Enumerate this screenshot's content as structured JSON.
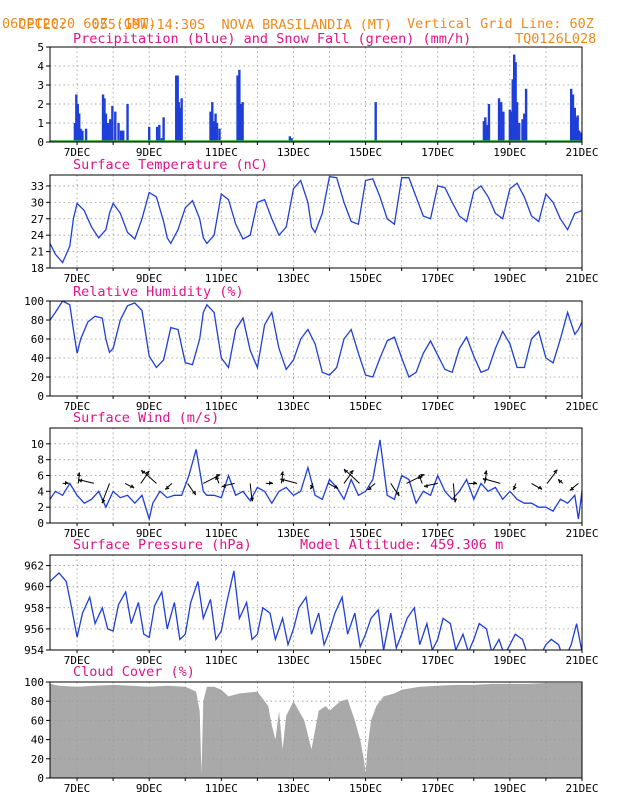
{
  "header": {
    "source": "CPTEC:",
    "coords": "055:19W-14:30S",
    "station": "NOVA BRASILANDIA (MT)",
    "run": "06DEC2020 60Z (GMT)",
    "grid_note": "Vertical Grid Line: 60Z",
    "model_code": "TQ0126L028"
  },
  "colors": {
    "header": "#f08a1a",
    "title": "#e0148c",
    "line": "#1f3fd8",
    "precip": "#1f3fd8",
    "snow": "#22aa22",
    "cloud": "#a9a9a9"
  },
  "date_labels": [
    "7DEC",
    "9DEC",
    "11DEC",
    "13DEC",
    "15DEC",
    "17DEC",
    "19DEC",
    "21DEC"
  ],
  "chart_data": [
    {
      "type": "bar",
      "title": "Precipitation (blue) and Snow Fall (green) (mm/h)",
      "ylim": [
        0,
        5
      ],
      "yticks": [
        "0",
        "1",
        "2",
        "3",
        "4",
        "5"
      ],
      "series": [
        {
          "name": "Precipitation",
          "color": "#1f3fd8",
          "x": [
            6.94,
            6.98,
            7.02,
            7.06,
            7.1,
            7.15,
            7.25,
            7.72,
            7.76,
            7.8,
            7.86,
            7.92,
            7.98,
            8.06,
            8.15,
            8.22,
            8.28,
            8.4,
            9.0,
            9.22,
            9.28,
            9.35,
            9.4,
            9.75,
            9.79,
            9.82,
            9.86,
            9.9,
            10.7,
            10.75,
            10.8,
            10.84,
            10.88,
            10.95,
            11.45,
            11.5,
            11.55,
            11.59,
            12.9,
            12.95,
            15.28,
            18.28,
            18.32,
            18.38,
            18.42,
            18.7,
            18.76,
            18.82,
            19.0,
            19.05,
            19.08,
            19.12,
            19.16,
            19.2,
            19.26,
            19.35,
            19.4,
            19.45,
            20.7,
            20.75,
            20.8,
            20.84,
            20.88,
            20.92,
            20.98
          ],
          "values": [
            1.0,
            2.5,
            2.0,
            1.5,
            0.7,
            0.6,
            0.7,
            2.5,
            2.3,
            1.5,
            1.0,
            1.2,
            1.9,
            1.6,
            1.0,
            0.6,
            0.6,
            2.0,
            0.8,
            0.8,
            0.9,
            0.2,
            1.3,
            3.5,
            3.5,
            2.1,
            1.8,
            2.3,
            1.6,
            2.1,
            1.1,
            1.5,
            1.0,
            0.7,
            3.5,
            3.8,
            2.0,
            2.1,
            0.3,
            0.2,
            2.1,
            1.1,
            1.3,
            0.9,
            2.0,
            2.3,
            2.1,
            1.6,
            1.7,
            1.6,
            3.3,
            4.6,
            4.2,
            2.1,
            1.0,
            1.2,
            1.5,
            2.8,
            2.8,
            2.5,
            1.8,
            1.3,
            1.4,
            0.6,
            0.5
          ]
        },
        {
          "name": "Snow Fall",
          "color": "#22aa22",
          "x": [],
          "values": []
        }
      ]
    },
    {
      "type": "line",
      "title": "Surface Temperature (nC)",
      "ylim": [
        18,
        35
      ],
      "yticks": [
        "18",
        "21",
        "24",
        "27",
        "30",
        "33"
      ],
      "x": [
        6.25,
        6.4,
        6.6,
        6.8,
        6.9,
        7.0,
        7.2,
        7.4,
        7.6,
        7.8,
        7.9,
        8.0,
        8.2,
        8.4,
        8.6,
        8.8,
        9.0,
        9.2,
        9.4,
        9.5,
        9.6,
        9.8,
        10.0,
        10.2,
        10.4,
        10.5,
        10.6,
        10.8,
        11.0,
        11.2,
        11.4,
        11.6,
        11.8,
        12.0,
        12.2,
        12.4,
        12.6,
        12.8,
        13.0,
        13.2,
        13.4,
        13.5,
        13.6,
        13.8,
        14.0,
        14.2,
        14.4,
        14.6,
        14.8,
        15.0,
        15.2,
        15.4,
        15.6,
        15.8,
        16.0,
        16.2,
        16.4,
        16.6,
        16.8,
        17.0,
        17.2,
        17.4,
        17.6,
        17.8,
        18.0,
        18.2,
        18.4,
        18.6,
        18.8,
        19.0,
        19.2,
        19.4,
        19.6,
        19.8,
        20.0,
        20.2,
        20.4,
        20.6,
        20.8,
        21.0
      ],
      "values": [
        22.5,
        20.5,
        19,
        22,
        27,
        29.8,
        28.5,
        25.5,
        23.5,
        25,
        28,
        29.8,
        28,
        24.5,
        23.3,
        27,
        31.8,
        31,
        26.5,
        23.5,
        22.5,
        25,
        29,
        30.3,
        27,
        23.5,
        22.5,
        24,
        31.5,
        30.5,
        26,
        23.3,
        24,
        30,
        30.5,
        27,
        24,
        25.5,
        32.5,
        34,
        30,
        25.5,
        24.5,
        28,
        34.7,
        34.5,
        30,
        26.5,
        26,
        34,
        34.3,
        31,
        27,
        26,
        34.5,
        34.5,
        31,
        27.5,
        27,
        33,
        32.7,
        30,
        27.5,
        26.5,
        32,
        33,
        31,
        28,
        27,
        32.5,
        33.5,
        31,
        27.5,
        26.5,
        31.5,
        30,
        27,
        25,
        28,
        28.5
      ]
    },
    {
      "type": "line",
      "title": "Relative Humidity (%)",
      "ylim": [
        0,
        100
      ],
      "yticks": [
        "0",
        "20",
        "40",
        "60",
        "80",
        "100"
      ],
      "x": [
        6.25,
        6.4,
        6.6,
        6.8,
        6.9,
        7.0,
        7.1,
        7.3,
        7.5,
        7.7,
        7.8,
        7.9,
        8.0,
        8.2,
        8.4,
        8.6,
        8.8,
        9.0,
        9.2,
        9.4,
        9.5,
        9.6,
        9.8,
        10.0,
        10.2,
        10.4,
        10.5,
        10.6,
        10.8,
        11.0,
        11.2,
        11.4,
        11.6,
        11.8,
        12.0,
        12.2,
        12.4,
        12.6,
        12.8,
        13.0,
        13.2,
        13.4,
        13.6,
        13.8,
        14.0,
        14.2,
        14.4,
        14.6,
        14.8,
        15.0,
        15.2,
        15.4,
        15.6,
        15.8,
        16.0,
        16.2,
        16.4,
        16.6,
        16.8,
        17.0,
        17.2,
        17.4,
        17.6,
        17.8,
        18.0,
        18.2,
        18.4,
        18.6,
        18.8,
        19.0,
        19.2,
        19.4,
        19.6,
        19.8,
        20.0,
        20.2,
        20.4,
        20.6,
        20.8,
        20.9,
        21.0
      ],
      "values": [
        80,
        88,
        100,
        96,
        70,
        45,
        60,
        78,
        84,
        82,
        60,
        46,
        50,
        80,
        95,
        98,
        90,
        42,
        30,
        38,
        55,
        72,
        70,
        35,
        33,
        60,
        88,
        96,
        88,
        40,
        30,
        70,
        82,
        48,
        30,
        75,
        88,
        50,
        28,
        38,
        60,
        70,
        55,
        25,
        22,
        30,
        60,
        70,
        45,
        22,
        20,
        40,
        58,
        62,
        40,
        20,
        25,
        45,
        58,
        43,
        28,
        25,
        50,
        62,
        42,
        25,
        28,
        50,
        68,
        55,
        30,
        30,
        60,
        68,
        40,
        35,
        60,
        88,
        65,
        70,
        78
      ]
    },
    {
      "type": "line",
      "title": "Surface Wind (m/s)",
      "ylim": [
        0,
        12
      ],
      "yticks": [
        "0",
        "2",
        "4",
        "6",
        "8",
        "10"
      ],
      "x": [
        6.25,
        6.4,
        6.6,
        6.8,
        7.0,
        7.2,
        7.4,
        7.6,
        7.8,
        8.0,
        8.2,
        8.4,
        8.6,
        8.8,
        9.0,
        9.1,
        9.3,
        9.5,
        9.7,
        9.9,
        10.1,
        10.3,
        10.5,
        10.6,
        10.8,
        11.0,
        11.2,
        11.4,
        11.6,
        11.8,
        12.0,
        12.2,
        12.4,
        12.6,
        12.8,
        13.0,
        13.2,
        13.4,
        13.6,
        13.8,
        14.0,
        14.2,
        14.4,
        14.6,
        14.8,
        15.0,
        15.2,
        15.4,
        15.6,
        15.8,
        16.0,
        16.2,
        16.4,
        16.6,
        16.8,
        17.0,
        17.2,
        17.4,
        17.6,
        17.8,
        18.0,
        18.2,
        18.4,
        18.6,
        18.8,
        19.0,
        19.2,
        19.4,
        19.6,
        19.8,
        20.0,
        20.2,
        20.4,
        20.6,
        20.8,
        20.9,
        21.0
      ],
      "values": [
        3,
        4,
        3.5,
        5,
        3.5,
        2.5,
        3,
        4,
        2,
        4,
        3.2,
        3.5,
        2.5,
        3.5,
        0.5,
        2.5,
        4,
        3.2,
        3.5,
        3.5,
        6,
        9.3,
        4,
        3.5,
        3.5,
        3.2,
        6,
        3.5,
        4,
        2.8,
        4.5,
        4,
        2.5,
        4,
        4.5,
        3.5,
        4,
        7,
        3.5,
        3,
        5.5,
        4.5,
        3,
        5.5,
        3.5,
        4,
        5.5,
        10.5,
        3.5,
        3,
        6,
        5.5,
        2.5,
        4,
        3.5,
        6,
        4,
        3,
        4,
        5.5,
        3,
        5,
        4,
        4.5,
        3,
        4,
        3,
        2.5,
        2.5,
        2,
        2,
        1.5,
        3,
        2.5,
        3.5,
        0.5,
        4
      ],
      "vector_count": 34
    },
    {
      "type": "line",
      "title": "Surface Pressure (hPa)",
      "annotation": "Model Altitude: 459.306 m",
      "ylim": [
        954,
        963
      ],
      "yticks": [
        "954",
        "956",
        "958",
        "960",
        "962"
      ],
      "x": [
        6.25,
        6.5,
        6.7,
        6.85,
        7.0,
        7.15,
        7.35,
        7.5,
        7.7,
        7.85,
        8.0,
        8.15,
        8.35,
        8.5,
        8.7,
        8.85,
        9.0,
        9.15,
        9.35,
        9.5,
        9.7,
        9.85,
        10.0,
        10.15,
        10.35,
        10.5,
        10.7,
        10.85,
        11.0,
        11.15,
        11.35,
        11.5,
        11.7,
        11.85,
        12.0,
        12.15,
        12.35,
        12.5,
        12.7,
        12.85,
        13.0,
        13.15,
        13.35,
        13.5,
        13.7,
        13.85,
        14.0,
        14.15,
        14.35,
        14.5,
        14.7,
        14.85,
        15.0,
        15.15,
        15.35,
        15.5,
        15.7,
        15.85,
        16.0,
        16.15,
        16.35,
        16.5,
        16.7,
        16.85,
        17.0,
        17.15,
        17.35,
        17.5,
        17.7,
        17.85,
        18.0,
        18.15,
        18.35,
        18.5,
        18.7,
        18.85,
        19.0,
        19.15,
        19.35,
        19.5,
        19.7,
        19.85,
        20.0,
        20.15,
        20.35,
        20.5,
        20.7,
        20.85,
        21.0
      ],
      "values": [
        960.5,
        961.3,
        960.5,
        958.0,
        955.2,
        957.5,
        959.0,
        956.5,
        958.0,
        956.0,
        955.8,
        958.3,
        959.5,
        956.5,
        958.5,
        955.5,
        955.2,
        958.2,
        959.5,
        956.0,
        958.5,
        955.0,
        955.5,
        958.5,
        960.5,
        957.0,
        958.8,
        955.0,
        955.8,
        958.5,
        961.5,
        957.0,
        958.5,
        955.0,
        955.5,
        958.0,
        957.5,
        955.0,
        957.0,
        954.5,
        956.0,
        958.0,
        959.0,
        955.5,
        957.5,
        954.5,
        955.8,
        957.5,
        959.0,
        955.5,
        957.5,
        954.3,
        955.5,
        957.0,
        957.8,
        954.0,
        957.5,
        954.2,
        955.5,
        957.0,
        958.0,
        954.5,
        956.5,
        954.0,
        955.0,
        957.0,
        956.5,
        954.0,
        955.5,
        953.8,
        955.0,
        956.5,
        956.0,
        953.8,
        955.0,
        953.5,
        954.5,
        955.5,
        955.0,
        953.5,
        954.0,
        953.5,
        954.5,
        955.0,
        954.5,
        953.0,
        954.5,
        956.5,
        953.8
      ]
    },
    {
      "type": "area",
      "title": "Cloud Cover (%)",
      "ylim": [
        0,
        100
      ],
      "yticks": [
        "0",
        "20",
        "40",
        "60",
        "80",
        "100"
      ],
      "x": [
        6.25,
        6.5,
        7.0,
        7.5,
        8.0,
        8.5,
        9.0,
        9.5,
        10.0,
        10.3,
        10.4,
        10.45,
        10.5,
        10.6,
        10.8,
        11.0,
        11.2,
        11.5,
        12.0,
        12.3,
        12.4,
        12.5,
        12.6,
        12.7,
        12.8,
        13.0,
        13.3,
        13.5,
        13.7,
        13.9,
        14.0,
        14.3,
        14.5,
        14.7,
        14.85,
        14.95,
        15.0,
        15.05,
        15.15,
        15.3,
        15.5,
        15.8,
        16.0,
        16.5,
        17.0,
        17.5,
        18.0,
        18.5,
        19.0,
        19.5,
        20.0,
        20.5,
        21.0
      ],
      "values": [
        98,
        96,
        95,
        96,
        97,
        96,
        95,
        96,
        95,
        90,
        70,
        5,
        80,
        95,
        95,
        92,
        85,
        88,
        90,
        75,
        55,
        40,
        70,
        30,
        65,
        80,
        60,
        30,
        70,
        75,
        70,
        80,
        82,
        60,
        40,
        20,
        5,
        30,
        60,
        75,
        85,
        88,
        92,
        95,
        96,
        97,
        97,
        98,
        98,
        98,
        99,
        99,
        99
      ]
    }
  ]
}
